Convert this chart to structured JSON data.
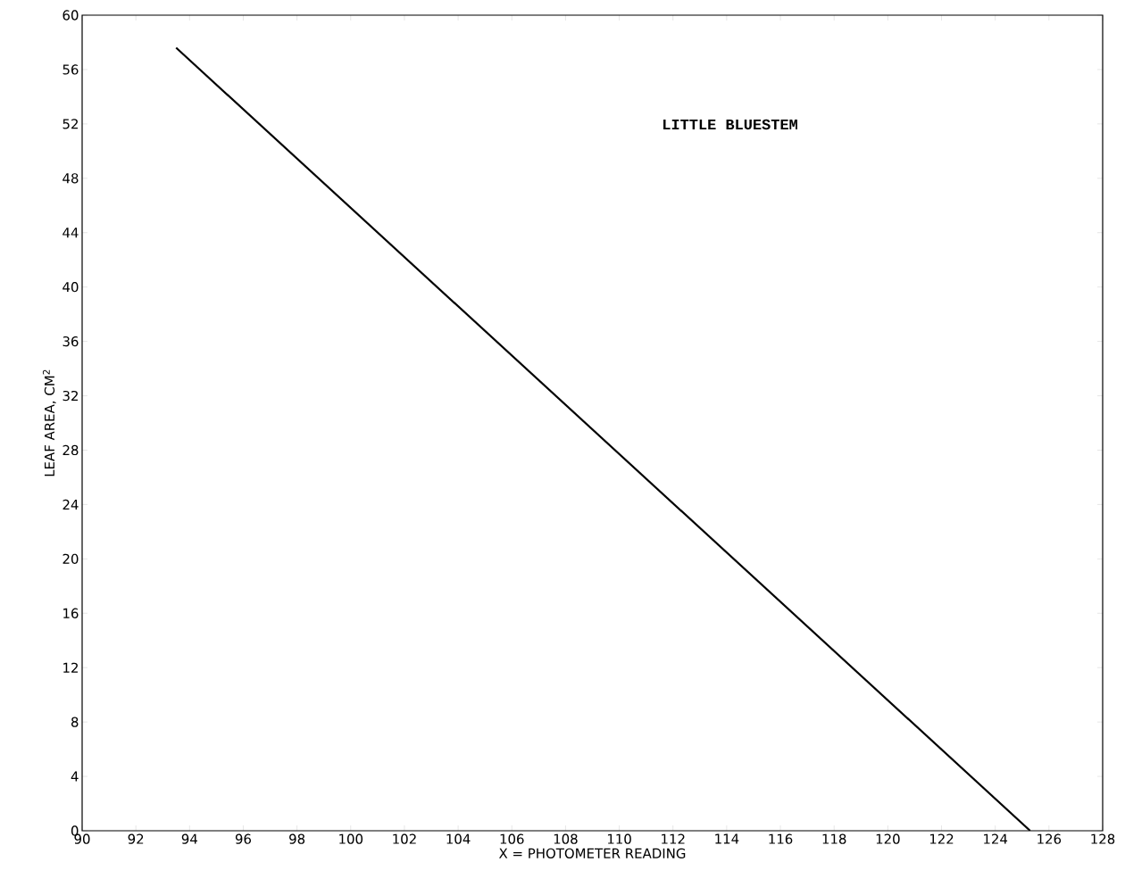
{
  "chart_data": {
    "type": "line",
    "xlabel": "X = PHOTOMETER READING",
    "ylabel": "LEAF AREA, CM$^{2}$",
    "annotations": [
      "LITTLE BLUESTEM"
    ],
    "series": [
      {
        "color": "#000000",
        "x": [
          93.5,
          125.3
        ],
        "values": [
          57.6,
          0
        ]
      }
    ],
    "xlim": [
      90,
      128
    ],
    "ylim": [
      0,
      60
    ],
    "xticks": [
      90,
      92,
      94,
      96,
      98,
      100,
      102,
      104,
      106,
      108,
      110,
      112,
      114,
      116,
      118,
      120,
      122,
      124,
      126,
      128
    ],
    "yticks": [
      0,
      4,
      8,
      12,
      16,
      20,
      24,
      28,
      32,
      36,
      40,
      44,
      48,
      52,
      56,
      60
    ],
    "marker": "none",
    "line_style": "solid"
  }
}
